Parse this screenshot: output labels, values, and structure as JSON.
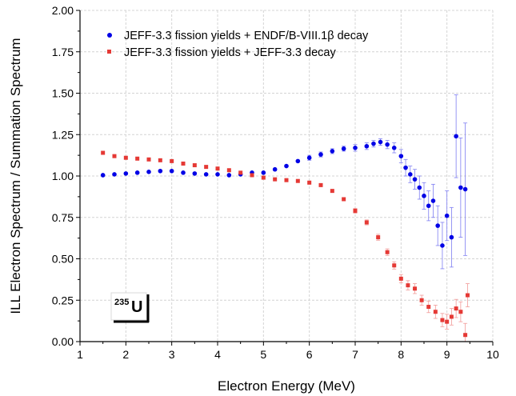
{
  "chart_data": {
    "type": "scatter",
    "xlabel": "Electron Energy (MeV)",
    "ylabel": "ILL Electron Spectrum / Summation Spectrum",
    "xlim": [
      1,
      10
    ],
    "ylim": [
      0,
      2.0
    ],
    "x_ticks": [
      "1",
      "2",
      "3",
      "4",
      "5",
      "6",
      "7",
      "8",
      "9",
      "10"
    ],
    "y_ticks": [
      "0.00",
      "0.25",
      "0.50",
      "0.75",
      "1.00",
      "1.25",
      "1.50",
      "1.75",
      "2.00"
    ],
    "grid": true,
    "legend_position": "top-right",
    "annotation": {
      "isotope_mass": "235",
      "isotope_symbol": "U"
    },
    "series": [
      {
        "name": "JEFF-3.3 fission yields + ENDF/B-VIII.1β decay",
        "color": "#0000e6",
        "marker": "circle",
        "points": [
          [
            1.5,
            1.005,
            0.01
          ],
          [
            1.75,
            1.01,
            0.01
          ],
          [
            2.0,
            1.015,
            0.01
          ],
          [
            2.25,
            1.02,
            0.01
          ],
          [
            2.5,
            1.025,
            0.01
          ],
          [
            2.75,
            1.03,
            0.01
          ],
          [
            3.0,
            1.03,
            0.01
          ],
          [
            3.25,
            1.02,
            0.01
          ],
          [
            3.5,
            1.015,
            0.01
          ],
          [
            3.75,
            1.01,
            0.01
          ],
          [
            4.0,
            1.01,
            0.01
          ],
          [
            4.25,
            1.005,
            0.01
          ],
          [
            4.5,
            1.01,
            0.01
          ],
          [
            4.75,
            1.02,
            0.01
          ],
          [
            5.0,
            1.02,
            0.01
          ],
          [
            5.25,
            1.04,
            0.01
          ],
          [
            5.5,
            1.06,
            0.01
          ],
          [
            5.75,
            1.09,
            0.01
          ],
          [
            6.0,
            1.11,
            0.015
          ],
          [
            6.25,
            1.13,
            0.015
          ],
          [
            6.5,
            1.15,
            0.015
          ],
          [
            6.75,
            1.165,
            0.015
          ],
          [
            7.0,
            1.17,
            0.02
          ],
          [
            7.25,
            1.18,
            0.02
          ],
          [
            7.4,
            1.195,
            0.02
          ],
          [
            7.55,
            1.205,
            0.02
          ],
          [
            7.7,
            1.19,
            0.025
          ],
          [
            7.85,
            1.17,
            0.03
          ],
          [
            8.0,
            1.12,
            0.04
          ],
          [
            8.1,
            1.05,
            0.05
          ],
          [
            8.2,
            1.01,
            0.05
          ],
          [
            8.3,
            0.98,
            0.06
          ],
          [
            8.4,
            0.93,
            0.07
          ],
          [
            8.5,
            0.88,
            0.08
          ],
          [
            8.6,
            0.82,
            0.09
          ],
          [
            8.7,
            0.85,
            0.1
          ],
          [
            8.8,
            0.7,
            0.12
          ],
          [
            8.9,
            0.58,
            0.14
          ],
          [
            9.0,
            0.76,
            0.15
          ],
          [
            9.1,
            0.63,
            0.18
          ],
          [
            9.2,
            1.24,
            0.25
          ],
          [
            9.3,
            0.93,
            0.3
          ],
          [
            9.4,
            0.92,
            0.4
          ]
        ]
      },
      {
        "name": "JEFF-3.3 fission yields + JEFF-3.3 decay",
        "color": "#e53935",
        "marker": "square",
        "points": [
          [
            1.5,
            1.14,
            0.01
          ],
          [
            1.75,
            1.12,
            0.01
          ],
          [
            2.0,
            1.11,
            0.01
          ],
          [
            2.25,
            1.105,
            0.01
          ],
          [
            2.5,
            1.1,
            0.01
          ],
          [
            2.75,
            1.095,
            0.01
          ],
          [
            3.0,
            1.09,
            0.01
          ],
          [
            3.25,
            1.075,
            0.01
          ],
          [
            3.5,
            1.065,
            0.01
          ],
          [
            3.75,
            1.055,
            0.01
          ],
          [
            4.0,
            1.045,
            0.01
          ],
          [
            4.25,
            1.035,
            0.01
          ],
          [
            4.5,
            1.02,
            0.01
          ],
          [
            4.75,
            1.005,
            0.01
          ],
          [
            5.0,
            0.99,
            0.01
          ],
          [
            5.25,
            0.98,
            0.01
          ],
          [
            5.5,
            0.975,
            0.01
          ],
          [
            5.75,
            0.97,
            0.01
          ],
          [
            6.0,
            0.96,
            0.01
          ],
          [
            6.25,
            0.945,
            0.01
          ],
          [
            6.5,
            0.91,
            0.012
          ],
          [
            6.75,
            0.86,
            0.012
          ],
          [
            7.0,
            0.79,
            0.015
          ],
          [
            7.25,
            0.72,
            0.015
          ],
          [
            7.5,
            0.63,
            0.018
          ],
          [
            7.7,
            0.54,
            0.02
          ],
          [
            7.85,
            0.46,
            0.022
          ],
          [
            8.0,
            0.38,
            0.025
          ],
          [
            8.15,
            0.34,
            0.028
          ],
          [
            8.3,
            0.32,
            0.03
          ],
          [
            8.45,
            0.25,
            0.03
          ],
          [
            8.6,
            0.21,
            0.035
          ],
          [
            8.75,
            0.18,
            0.04
          ],
          [
            8.9,
            0.13,
            0.04
          ],
          [
            9.0,
            0.12,
            0.045
          ],
          [
            9.1,
            0.15,
            0.05
          ],
          [
            9.2,
            0.2,
            0.055
          ],
          [
            9.3,
            0.18,
            0.06
          ],
          [
            9.4,
            0.04,
            0.07
          ],
          [
            9.45,
            0.28,
            0.07
          ]
        ]
      }
    ]
  }
}
